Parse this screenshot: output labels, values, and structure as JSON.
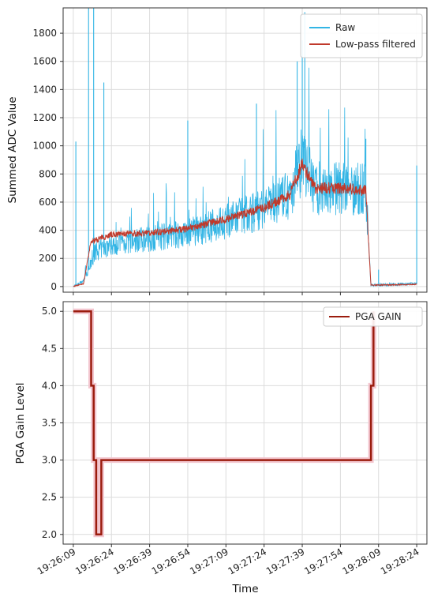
{
  "chart_data": [
    {
      "type": "line",
      "ylabel": "Summed ADC Value",
      "xlabel": "",
      "ylim": [
        -40,
        1980
      ],
      "yticks": [
        0,
        200,
        400,
        600,
        800,
        1000,
        1200,
        1400,
        1600,
        1800
      ],
      "grid": true,
      "legend_position": "top-right",
      "colors": {
        "raw": "#33b5e5",
        "filtered": "#c0392b"
      },
      "series": [
        {
          "name": "Raw",
          "description_points": [
            [
              "19:26:09",
              0
            ],
            [
              "19:26:13",
              40
            ],
            [
              "19:26:18",
              250
            ],
            [
              "19:26:24",
              300
            ],
            [
              "19:26:39",
              340
            ],
            [
              "19:26:54",
              380
            ],
            [
              "19:27:09",
              460
            ],
            [
              "19:27:24",
              560
            ],
            [
              "19:27:34",
              650
            ],
            [
              "19:27:39",
              900
            ],
            [
              "19:27:44",
              700
            ],
            [
              "19:27:54",
              700
            ],
            [
              "19:28:04",
              690
            ],
            [
              "19:28:06",
              10
            ],
            [
              "19:28:24",
              20
            ]
          ],
          "spikes": [
            [
              "19:26:10",
              1030
            ],
            [
              "19:26:15",
              1980
            ],
            [
              "19:26:17",
              1980
            ],
            [
              "19:26:21",
              1450
            ],
            [
              "19:26:54",
              1180
            ],
            [
              "19:27:21",
              1300
            ],
            [
              "19:27:37",
              1600
            ],
            [
              "19:27:39",
              1750
            ],
            [
              "19:27:40",
              1950
            ],
            [
              "19:28:04",
              1050
            ],
            [
              "19:28:09",
              120
            ],
            [
              "19:28:24",
              860
            ]
          ]
        },
        {
          "name": "Low-pass filtered",
          "description_points": [
            [
              "19:26:09",
              0
            ],
            [
              "19:26:13",
              20
            ],
            [
              "19:26:16",
              320
            ],
            [
              "19:26:24",
              370
            ],
            [
              "19:26:39",
              380
            ],
            [
              "19:26:54",
              410
            ],
            [
              "19:27:09",
              480
            ],
            [
              "19:27:24",
              560
            ],
            [
              "19:27:34",
              650
            ],
            [
              "19:27:39",
              870
            ],
            [
              "19:27:44",
              700
            ],
            [
              "19:27:54",
              700
            ],
            [
              "19:28:04",
              680
            ],
            [
              "19:28:06",
              10
            ],
            [
              "19:28:24",
              15
            ]
          ]
        }
      ]
    },
    {
      "type": "line",
      "ylabel": "PGA Gain Level",
      "xlabel": "Time",
      "ylim": [
        1.87,
        5.13
      ],
      "yticks": [
        "5.0",
        "4.5",
        "4.0",
        "3.5",
        "3.0",
        "2.5",
        "2.0"
      ],
      "grid": true,
      "legend_position": "top-right",
      "colors": {
        "gain": "#9b1c0e",
        "halo": "#f3c6cf"
      },
      "x_tick_labels": [
        "19:26:09",
        "19:26:24",
        "19:26:39",
        "19:26:54",
        "19:27:09",
        "19:27:24",
        "19:27:39",
        "19:27:54",
        "19:28:09",
        "19:28:24"
      ],
      "series": [
        {
          "name": "PGA GAIN",
          "points": [
            [
              "19:26:09",
              5.0
            ],
            [
              "19:26:16",
              5.0
            ],
            [
              "19:26:16",
              4.0
            ],
            [
              "19:26:17",
              4.0
            ],
            [
              "19:26:17",
              3.0
            ],
            [
              "19:26:18",
              3.0
            ],
            [
              "19:26:18",
              2.0
            ],
            [
              "19:26:20",
              2.0
            ],
            [
              "19:26:20",
              3.0
            ],
            [
              "19:28:06",
              3.0
            ],
            [
              "19:28:06",
              4.0
            ],
            [
              "19:28:07",
              4.0
            ],
            [
              "19:28:07",
              5.0
            ]
          ]
        }
      ]
    }
  ]
}
